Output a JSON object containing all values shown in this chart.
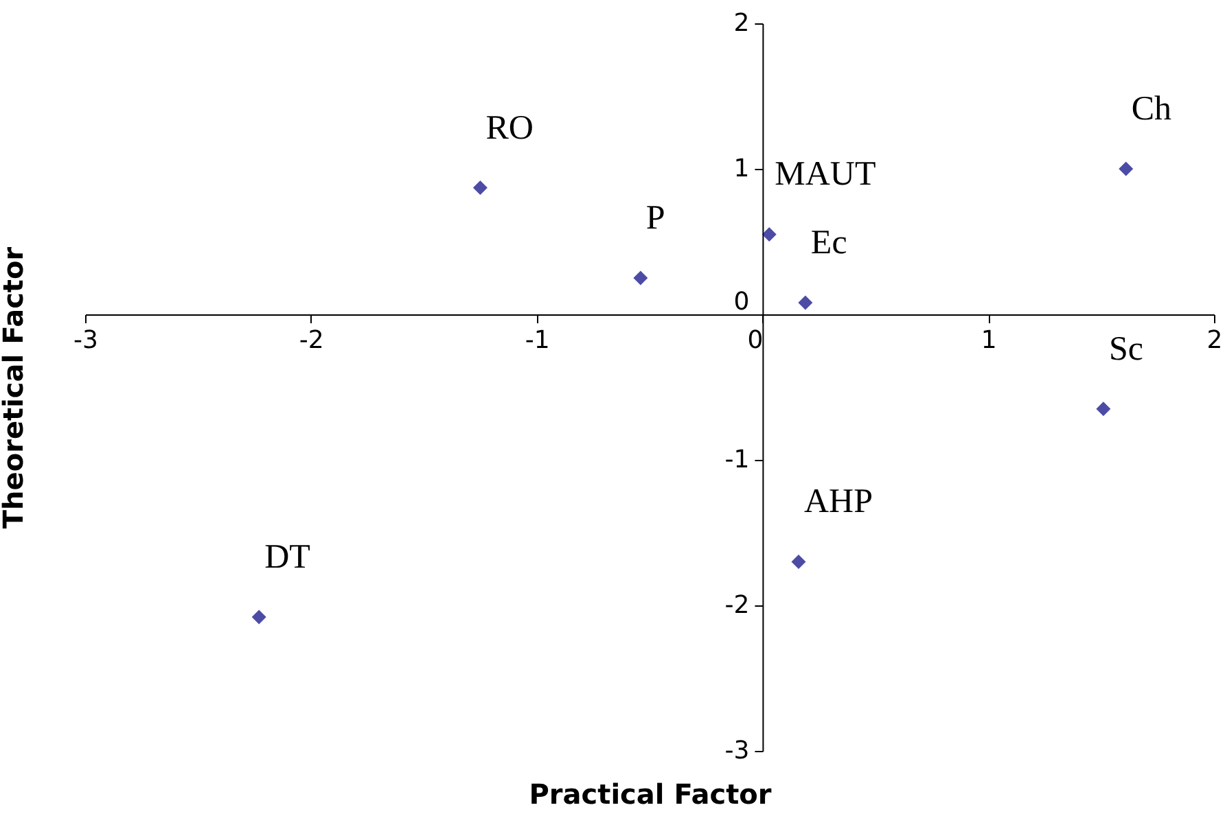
{
  "chart_data": {
    "type": "scatter",
    "xlabel": "Practical Factor",
    "ylabel": "Theoretical Factor",
    "x": [
      -1.25,
      -0.54,
      0.03,
      0.19,
      1.61,
      1.51,
      0.16,
      -2.23
    ],
    "series": [
      {
        "color": "#000080",
        "values": [
          0.87,
          0.25,
          0.55,
          0.08,
          1.0,
          -0.65,
          -1.7,
          -2.08
        ]
      }
    ],
    "xlim": [
      -3,
      2
    ],
    "ylim": [
      -3,
      2
    ],
    "xticks": [
      -3,
      -2,
      -1,
      0,
      1,
      2
    ],
    "yticks": [
      -3,
      -2,
      -1,
      0,
      1,
      2
    ],
    "marker": "diamond",
    "grid": false,
    "annotations": [
      {
        "text": "RO",
        "x": -1.25,
        "y": 0.87
      },
      {
        "text": "P",
        "x": -0.54,
        "y": 0.25
      },
      {
        "text": "MAUT",
        "x": 0.03,
        "y": 0.55
      },
      {
        "text": "Ec",
        "x": 0.19,
        "y": 0.08
      },
      {
        "text": "Ch",
        "x": 1.61,
        "y": 1.0
      },
      {
        "text": "Sc",
        "x": 1.51,
        "y": -0.65
      },
      {
        "text": "AHP",
        "x": 0.16,
        "y": -1.7
      },
      {
        "text": "DT",
        "x": -2.23,
        "y": -2.08
      }
    ]
  }
}
